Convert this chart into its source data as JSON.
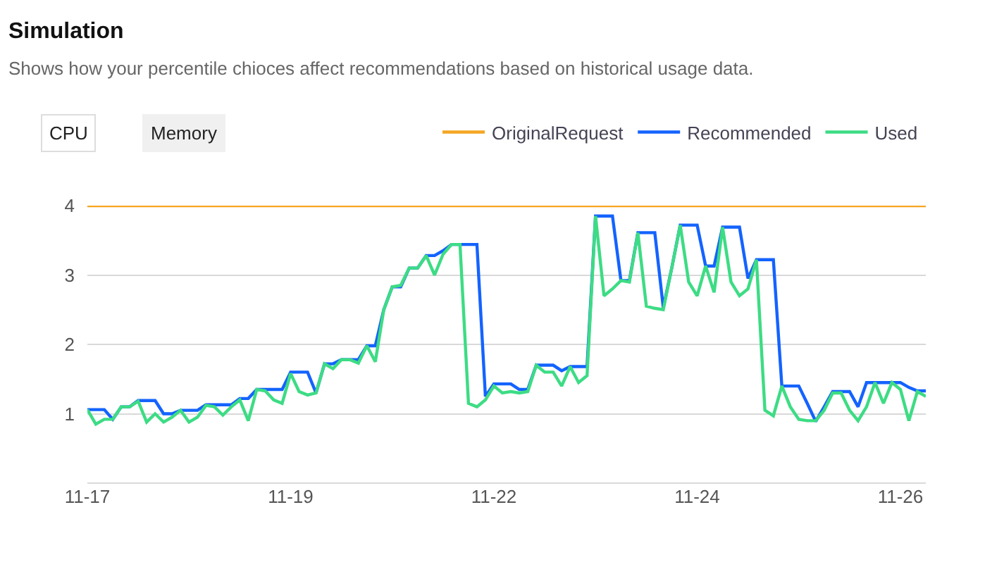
{
  "chart_data": {
    "type": "line",
    "title": "Simulation",
    "subtitle": "Shows how your percentile chioces affect recommendations based on historical usage data.",
    "annotations": [
      "CPU",
      "Memory"
    ],
    "categories": [
      "11-17",
      null,
      null,
      null,
      null,
      null,
      null,
      null,
      null,
      null,
      null,
      null,
      null,
      null,
      null,
      null,
      null,
      null,
      null,
      null,
      null,
      null,
      null,
      null,
      "11-19",
      null,
      null,
      null,
      null,
      null,
      null,
      null,
      null,
      null,
      null,
      null,
      null,
      null,
      null,
      null,
      null,
      null,
      null,
      null,
      null,
      null,
      null,
      null,
      "11-22",
      null,
      null,
      null,
      null,
      null,
      null,
      null,
      null,
      null,
      null,
      null,
      null,
      null,
      null,
      null,
      null,
      null,
      null,
      null,
      null,
      null,
      null,
      null,
      "11-24",
      null,
      null,
      null,
      null,
      null,
      null,
      null,
      null,
      null,
      null,
      null,
      null,
      null,
      null,
      null,
      null,
      null,
      null,
      null,
      null,
      null,
      null,
      null,
      "11-26",
      null,
      null,
      null
    ],
    "series": [
      {
        "name": "OriginalRequest",
        "color": "#f5a623",
        "values": [
          4,
          4,
          4,
          4,
          4,
          4,
          4,
          4,
          4,
          4,
          4,
          4,
          4,
          4,
          4,
          4,
          4,
          4,
          4,
          4,
          4,
          4,
          4,
          4,
          4,
          4,
          4,
          4,
          4,
          4,
          4,
          4,
          4,
          4,
          4,
          4,
          4,
          4,
          4,
          4,
          4,
          4,
          4,
          4,
          4,
          4,
          4,
          4,
          4,
          4,
          4,
          4,
          4,
          4,
          4,
          4,
          4,
          4,
          4,
          4,
          4,
          4,
          4,
          4,
          4,
          4,
          4,
          4,
          4,
          4,
          4,
          4,
          4,
          4,
          4,
          4,
          4,
          4,
          4,
          4,
          4,
          4,
          4,
          4,
          4,
          4,
          4,
          4,
          4,
          4,
          4,
          4,
          4,
          4,
          4,
          4,
          4,
          4,
          4,
          4
        ]
      },
      {
        "name": "Recommended",
        "color": "#1463ff",
        "values": [
          1.06,
          1.06,
          1.06,
          0.92,
          1.1,
          1.1,
          1.19,
          1.19,
          1.19,
          1.0,
          1.0,
          1.05,
          1.05,
          1.05,
          1.13,
          1.13,
          1.13,
          1.13,
          1.22,
          1.22,
          1.35,
          1.35,
          1.35,
          1.35,
          1.6,
          1.6,
          1.6,
          1.3,
          1.72,
          1.72,
          1.78,
          1.78,
          1.78,
          1.98,
          1.98,
          2.5,
          2.83,
          2.83,
          3.1,
          3.1,
          3.28,
          3.28,
          3.35,
          3.44,
          3.44,
          3.44,
          3.44,
          1.25,
          1.43,
          1.43,
          1.43,
          1.35,
          1.35,
          1.7,
          1.7,
          1.7,
          1.62,
          1.68,
          1.68,
          1.68,
          3.85,
          3.85,
          3.85,
          2.92,
          2.92,
          3.61,
          3.61,
          3.61,
          2.53,
          3.1,
          3.72,
          3.72,
          3.72,
          3.13,
          3.13,
          3.69,
          3.69,
          3.69,
          2.95,
          3.22,
          3.22,
          3.22,
          1.4,
          1.4,
          1.4,
          1.15,
          0.89,
          1.1,
          1.32,
          1.32,
          1.32,
          1.1,
          1.45,
          1.45,
          1.45,
          1.45,
          1.45,
          1.38,
          1.33,
          1.33
        ]
      },
      {
        "name": "Used",
        "color": "#3ddc84",
        "values": [
          1.06,
          0.85,
          0.92,
          0.92,
          1.1,
          1.1,
          1.18,
          0.88,
          1.0,
          0.88,
          0.95,
          1.05,
          0.88,
          0.95,
          1.12,
          1.1,
          0.98,
          1.1,
          1.2,
          0.9,
          1.35,
          1.33,
          1.2,
          1.15,
          1.58,
          1.32,
          1.27,
          1.3,
          1.72,
          1.65,
          1.78,
          1.78,
          1.73,
          1.98,
          1.75,
          2.5,
          2.83,
          2.85,
          3.1,
          3.1,
          3.28,
          3.0,
          3.3,
          3.44,
          3.44,
          1.15,
          1.1,
          1.2,
          1.4,
          1.3,
          1.32,
          1.3,
          1.32,
          1.7,
          1.6,
          1.6,
          1.4,
          1.68,
          1.45,
          1.55,
          3.85,
          2.7,
          2.8,
          2.92,
          2.9,
          3.61,
          2.55,
          2.52,
          2.5,
          3.1,
          3.72,
          2.9,
          2.7,
          3.13,
          2.75,
          3.69,
          2.9,
          2.7,
          2.8,
          3.22,
          1.05,
          0.97,
          1.4,
          1.1,
          0.92,
          0.9,
          0.9,
          1.05,
          1.3,
          1.3,
          1.05,
          0.9,
          1.1,
          1.45,
          1.15,
          1.45,
          1.35,
          0.9,
          1.32,
          1.25
        ]
      }
    ],
    "ylim": [
      0,
      4
    ],
    "yticks": [
      {
        "value": 0,
        "label": null
      },
      1,
      2,
      3,
      4
    ],
    "grid": "y",
    "legend": "top right",
    "marker": "none",
    "line_style": "solid"
  }
}
